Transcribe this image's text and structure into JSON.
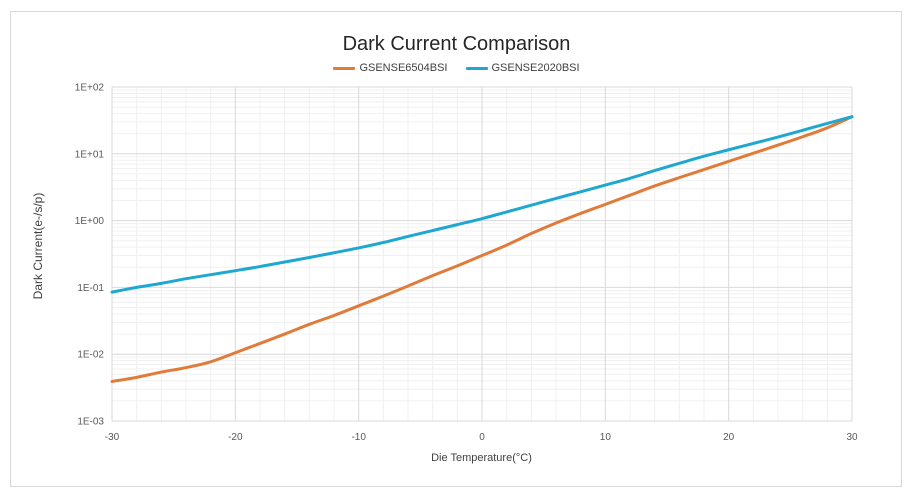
{
  "chart_data": {
    "type": "line",
    "title": "Dark Current Comparison",
    "xlabel": "Die Temperature(°C)",
    "ylabel": "Dark Current(e-/s/p)",
    "xlim": [
      -30,
      30
    ],
    "ylim": [
      0.001,
      100
    ],
    "yscale": "log",
    "x_ticks": [
      -30,
      -20,
      -10,
      0,
      10,
      20,
      30
    ],
    "y_ticks": [
      0.001,
      0.01,
      0.1,
      1,
      10,
      100
    ],
    "y_tick_labels": [
      "1E-03",
      "1E-02",
      "1E-01",
      "1E+00",
      "1E+01",
      "1E+02"
    ],
    "grid": true,
    "legend_position": "top",
    "x": [
      -30,
      -28,
      -26,
      -24,
      -22,
      -20,
      -18,
      -16,
      -14,
      -12,
      -10,
      -8,
      -6,
      -4,
      -2,
      0,
      2,
      4,
      6,
      8,
      10,
      12,
      14,
      16,
      18,
      20,
      22,
      24,
      26,
      28,
      30
    ],
    "series": [
      {
        "name": "GSENSE6504BSI",
        "color": "#e07b39",
        "values": [
          0.0039,
          0.0045,
          0.0054,
          0.0063,
          0.0077,
          0.0105,
          0.0145,
          0.02,
          0.028,
          0.038,
          0.053,
          0.074,
          0.105,
          0.15,
          0.21,
          0.3,
          0.43,
          0.64,
          0.92,
          1.28,
          1.75,
          2.4,
          3.3,
          4.4,
          5.8,
          7.7,
          10.2,
          13.5,
          18.0,
          24.5,
          36.0
        ]
      },
      {
        "name": "GSENSE2020BSI",
        "color": "#1ea7d0",
        "values": [
          0.085,
          0.1,
          0.115,
          0.135,
          0.155,
          0.178,
          0.205,
          0.24,
          0.28,
          0.33,
          0.39,
          0.47,
          0.58,
          0.71,
          0.87,
          1.07,
          1.35,
          1.7,
          2.15,
          2.7,
          3.4,
          4.3,
          5.6,
          7.2,
          9.2,
          11.5,
          14.3,
          17.8,
          22.5,
          28.5,
          36.0
        ]
      }
    ]
  }
}
